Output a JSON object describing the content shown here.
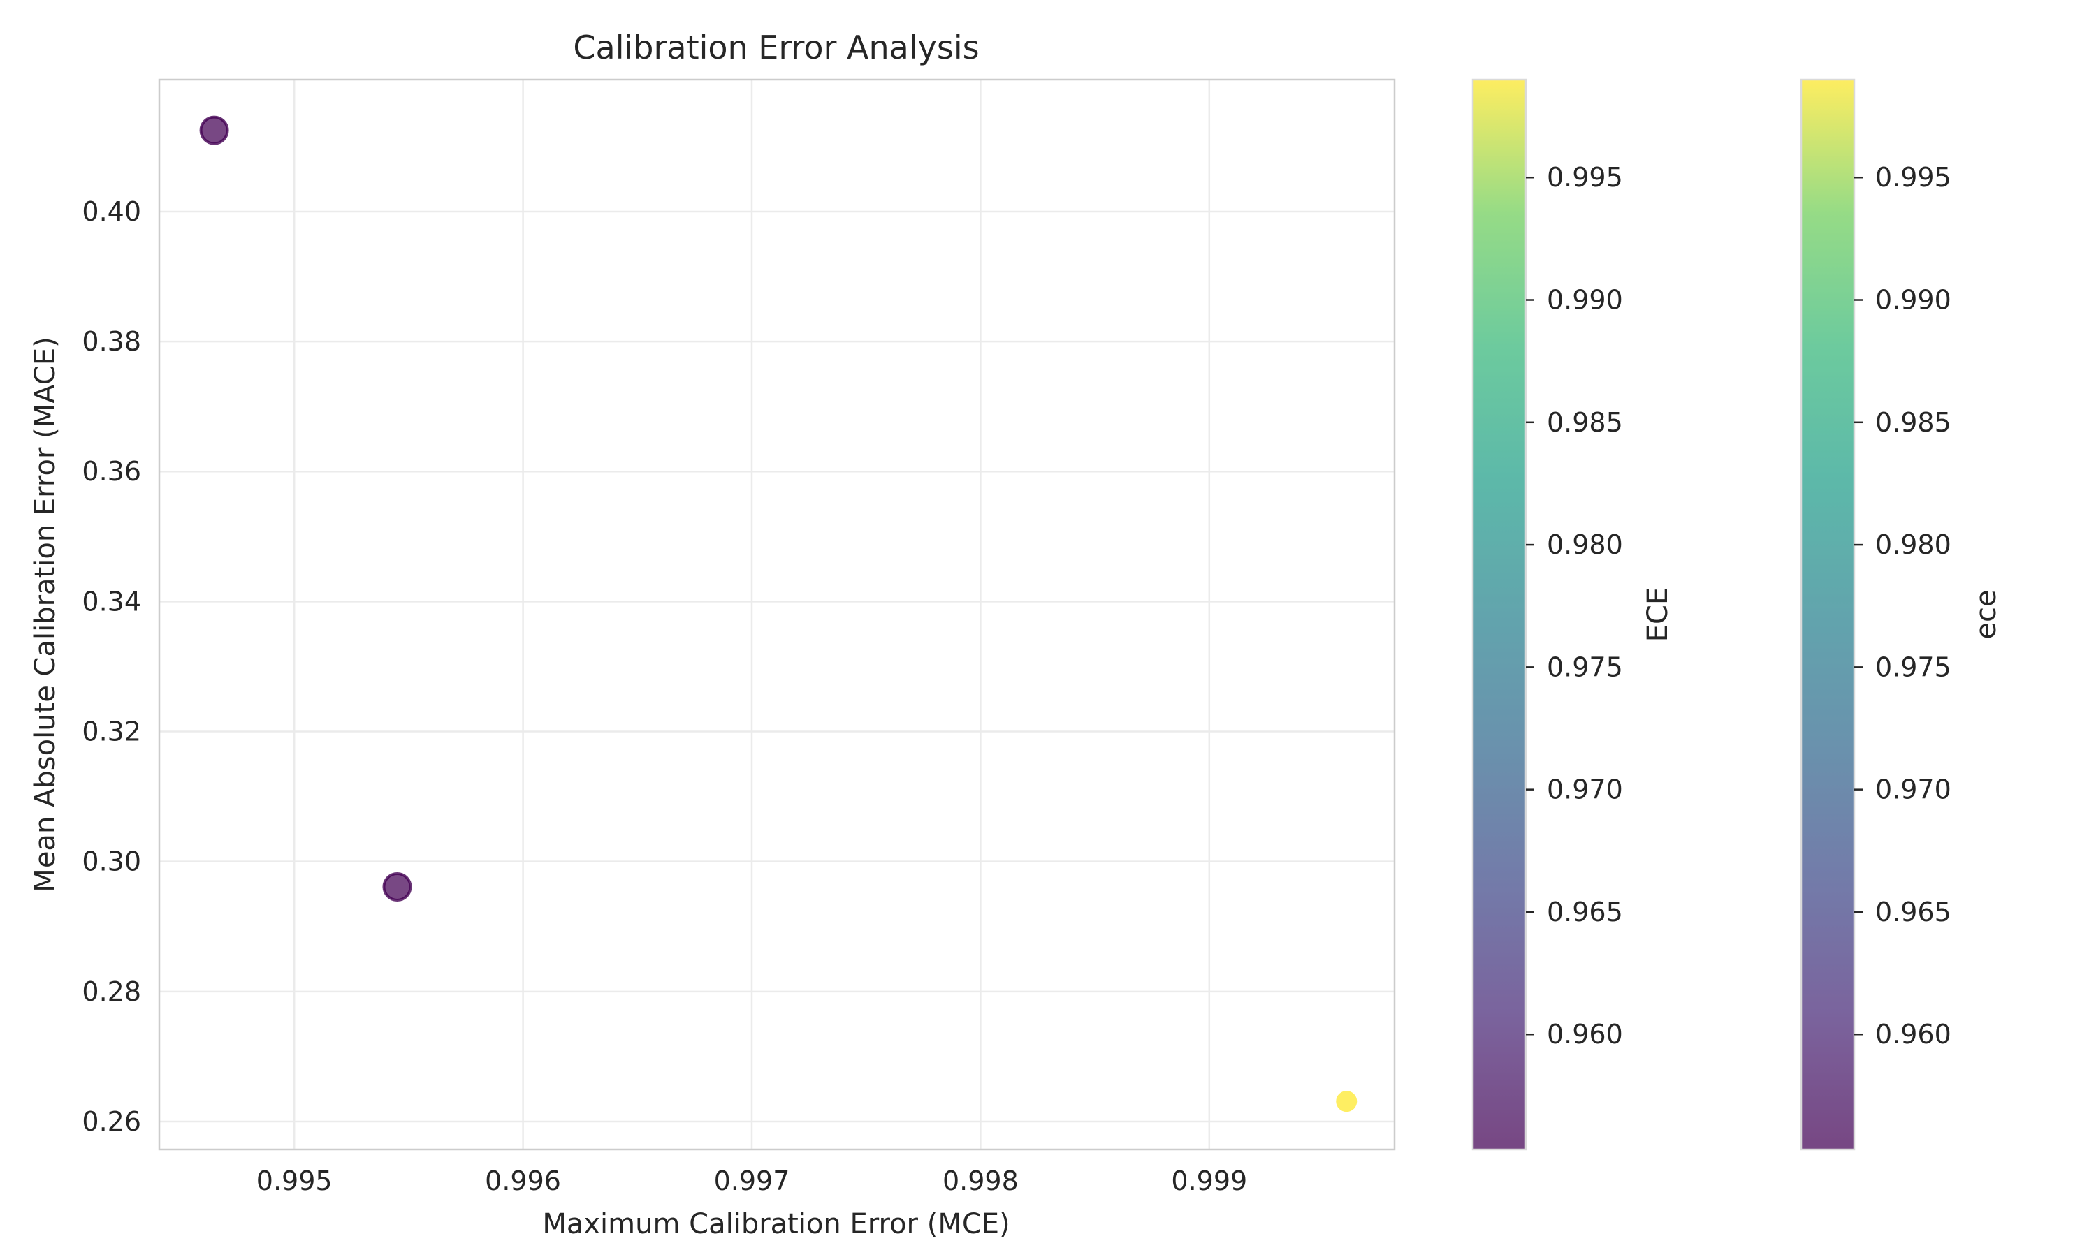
{
  "chart_data": {
    "type": "scatter",
    "title": "Calibration Error Analysis",
    "xlabel": "Maximum Calibration Error (MCE)",
    "ylabel": "Mean Absolute Calibration Error (MACE)",
    "xlim": [
      0.99441,
      0.99981
    ],
    "ylim": [
      0.2557,
      0.4203
    ],
    "xticks": [
      0.995,
      0.996,
      0.997,
      0.998,
      0.999
    ],
    "xtick_labels": [
      "0.995",
      "0.996",
      "0.997",
      "0.998",
      "0.999"
    ],
    "yticks": [
      0.26,
      0.28,
      0.3,
      0.32,
      0.34,
      0.36,
      0.38,
      0.4
    ],
    "ytick_labels": [
      "0.26",
      "0.28",
      "0.30",
      "0.32",
      "0.34",
      "0.36",
      "0.38",
      "0.40"
    ],
    "grid": true,
    "colormap": "viridis",
    "points": [
      {
        "x": 0.99465,
        "y": 0.4125,
        "ece": 0.9553,
        "size": "large"
      },
      {
        "x": 0.99545,
        "y": 0.2961,
        "ece": 0.9553,
        "size": "large"
      },
      {
        "x": 0.9996,
        "y": 0.2631,
        "ece": 0.999,
        "size": "small"
      }
    ],
    "colorbars": [
      {
        "label": "ECE",
        "range": [
          0.9553,
          0.999
        ],
        "ticks": [
          0.96,
          0.965,
          0.97,
          0.975,
          0.98,
          0.985,
          0.99,
          0.995
        ],
        "tick_labels": [
          "0.960",
          "0.965",
          "0.970",
          "0.975",
          "0.980",
          "0.985",
          "0.990",
          "0.995"
        ]
      },
      {
        "label": "ece",
        "range": [
          0.9553,
          0.999
        ],
        "ticks": [
          0.96,
          0.965,
          0.97,
          0.975,
          0.98,
          0.985,
          0.99,
          0.995
        ],
        "tick_labels": [
          "0.960",
          "0.965",
          "0.970",
          "0.975",
          "0.980",
          "0.985",
          "0.990",
          "0.995"
        ]
      }
    ],
    "colors": {
      "viridis_low": "#440154",
      "viridis_high": "#fde725",
      "grid": "#ebebeb",
      "spine": "#cccccc",
      "text": "#262626"
    }
  }
}
